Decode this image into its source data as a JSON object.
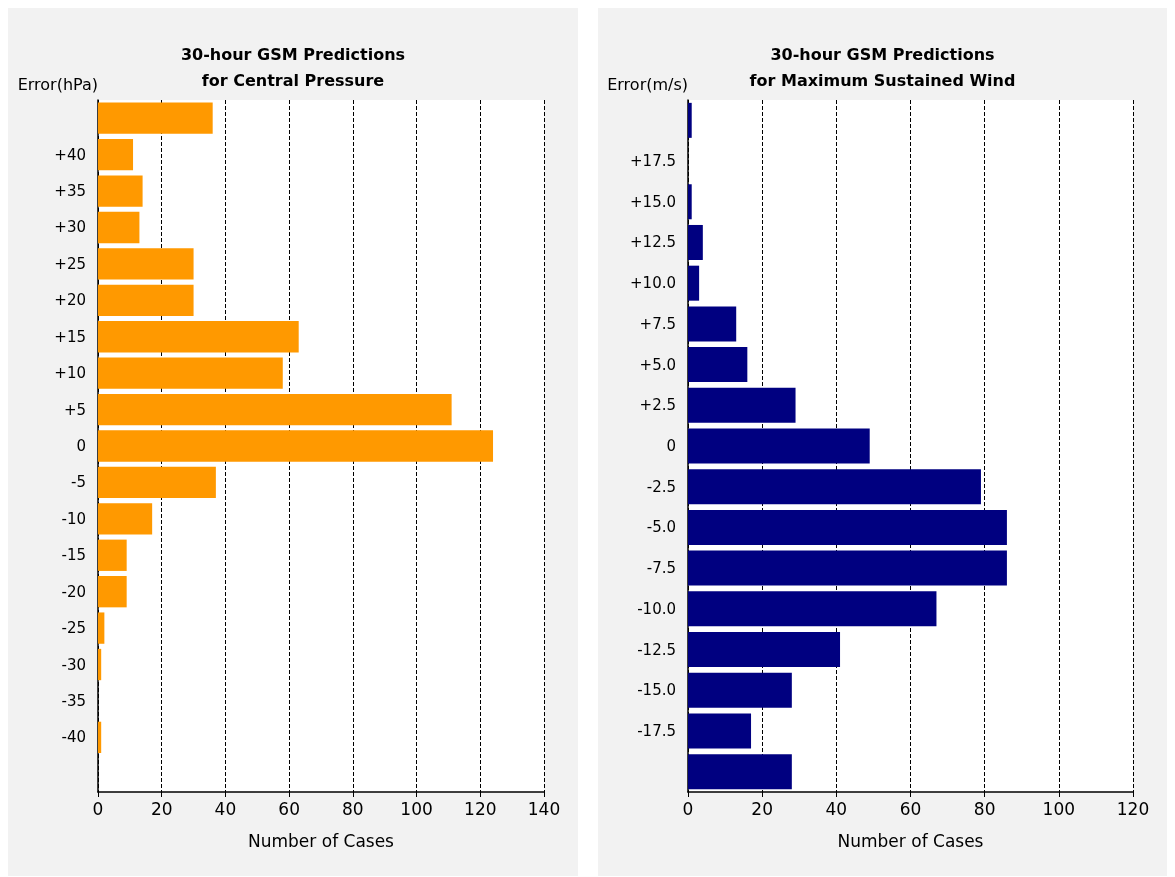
{
  "chart_data": [
    {
      "type": "bar",
      "orientation": "horizontal",
      "title": "30-hour GSM Predictions\nfor Central Pressure",
      "xlabel": "Number of Cases",
      "ylabel": "Error(hPa)",
      "categories": [
        null,
        "+40",
        "+35",
        "+30",
        "+25",
        "+20",
        "+15",
        "+10",
        "+5",
        "0",
        "-5",
        "-10",
        "-15",
        "-20",
        "-25",
        "-30",
        "-35",
        "-40",
        null
      ],
      "values": [
        36,
        11,
        14,
        13,
        30,
        30,
        63,
        58,
        111,
        124,
        37,
        17,
        9,
        9,
        2,
        1,
        0,
        1,
        0
      ],
      "color": "#ff9900",
      "xlim": [
        0,
        140
      ],
      "xticks": [
        0,
        20,
        40,
        60,
        80,
        100,
        120,
        140
      ],
      "grid": "x"
    },
    {
      "type": "bar",
      "orientation": "horizontal",
      "title": "30-hour GSM Predictions\nfor Maximum Sustained Wind",
      "xlabel": "Number of Cases",
      "ylabel": "Error(m/s)",
      "categories": [
        null,
        "+17.5",
        "+15.0",
        "+12.5",
        "+10.0",
        "+7.5",
        "+5.0",
        "+2.5",
        "0",
        "-2.5",
        "-5.0",
        "-7.5",
        "-10.0",
        "-12.5",
        "-15.0",
        "-17.5",
        null
      ],
      "values": [
        1,
        0,
        1,
        4,
        3,
        13,
        16,
        29,
        49,
        79,
        86,
        86,
        67,
        41,
        28,
        17,
        28
      ],
      "color": "#000080",
      "xlim": [
        0,
        120
      ],
      "xticks": [
        0,
        20,
        40,
        60,
        80,
        100,
        120
      ],
      "grid": "x"
    }
  ]
}
